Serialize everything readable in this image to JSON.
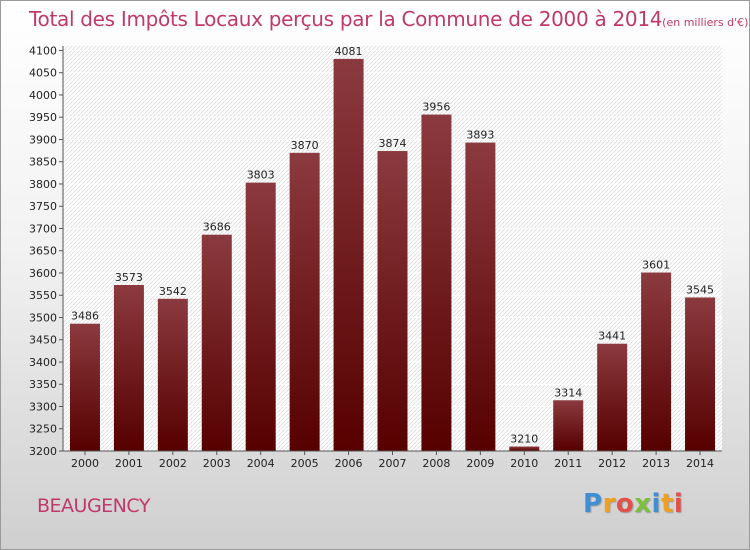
{
  "chart_data": {
    "type": "bar",
    "title": "Total des Impôts Locaux perçus par la Commune de 2000 à 2014",
    "title_unit": "(en milliers d'€)",
    "categories": [
      "2000",
      "2001",
      "2002",
      "2003",
      "2004",
      "2005",
      "2006",
      "2007",
      "2008",
      "2009",
      "2010",
      "2011",
      "2012",
      "2013",
      "2014"
    ],
    "values": [
      3486,
      3573,
      3542,
      3686,
      3803,
      3870,
      4081,
      3874,
      3956,
      3893,
      3210,
      3314,
      3441,
      3601,
      3545
    ],
    "value_labels": [
      "3486",
      "3573",
      "3542",
      "3686",
      "3803",
      "3870",
      "4081",
      "3874",
      "3956",
      "3893",
      "3210",
      "3314",
      "3441",
      "3601",
      "3545"
    ],
    "y_ticks": [
      3200,
      3250,
      3300,
      3350,
      3400,
      3450,
      3500,
      3550,
      3600,
      3650,
      3700,
      3750,
      3800,
      3850,
      3900,
      3950,
      4000,
      4050,
      4100
    ],
    "y_tick_labels": [
      "3200",
      "3250",
      "3300",
      "3350",
      "3400",
      "3450",
      "3500",
      "3550",
      "3600",
      "3650",
      "3700",
      "3750",
      "3800",
      "3850",
      "3900",
      "3950",
      "4000",
      "4050",
      "4100"
    ],
    "ylim": [
      3200,
      4110
    ],
    "grid": true,
    "bar_color_top": "#8b3a3f",
    "bar_color_bottom": "#560000"
  },
  "commune": "BEAUGENCY",
  "logo": {
    "letters": [
      "P",
      "r",
      "o",
      "x",
      "i",
      "t",
      "i"
    ],
    "colors": [
      "#3f8fd6",
      "#f0a020",
      "#e2504a",
      "#7cbf3a",
      "#3f8fd6",
      "#f0a020",
      "#e2504a"
    ]
  }
}
